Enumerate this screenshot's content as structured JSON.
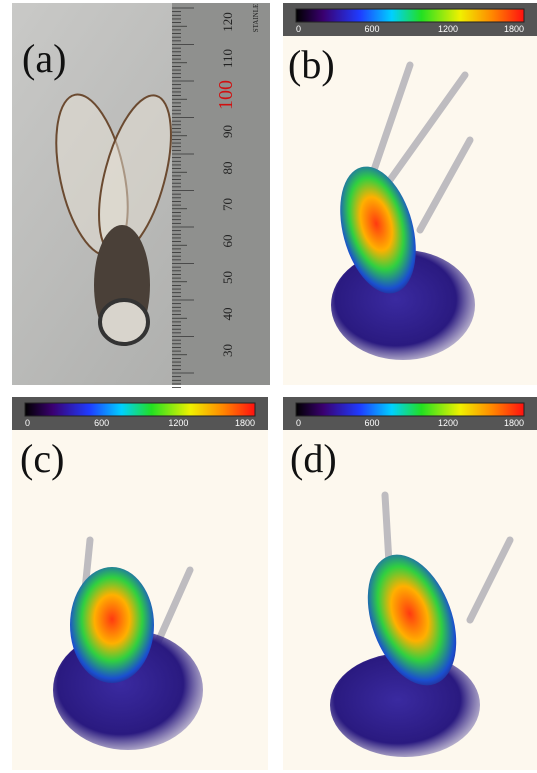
{
  "panels": [
    {
      "label": "(a)",
      "ruler": {
        "marks": [
          120,
          110,
          100,
          90,
          80,
          70,
          60,
          50,
          40,
          30
        ],
        "brand": "STAINLE"
      }
    },
    {
      "label": "(b)",
      "colorbar_ticks": [
        0,
        600,
        1200,
        1800
      ]
    },
    {
      "label": "(c)",
      "colorbar_ticks": [
        0,
        600,
        1200,
        1800
      ]
    },
    {
      "label": "(d)",
      "colorbar_ticks": [
        0,
        600,
        1200,
        1800
      ]
    }
  ]
}
